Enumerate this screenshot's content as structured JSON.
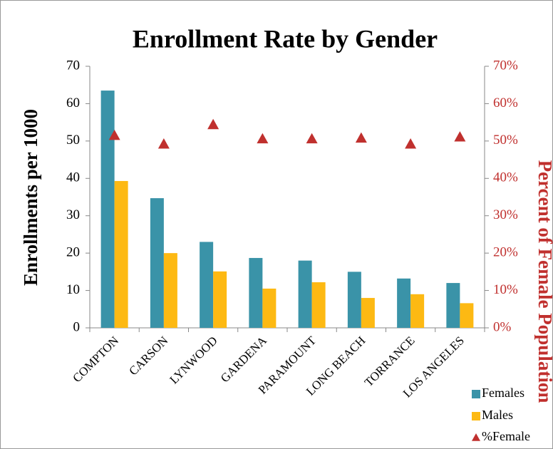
{
  "chart_data": {
    "type": "bar",
    "title": "Enrollment Rate by Gender",
    "ylabel": "Enrollments per 1000",
    "y2label": "Percent of Female Population",
    "categories": [
      "COMPTON",
      "CARSON",
      "LYNWOOD",
      "GARDENA",
      "PARAMOUNT",
      "LONG BEACH",
      "TORRANCE",
      "LOS ANGELES"
    ],
    "series": [
      {
        "name": "Females",
        "color": "#3a93a8",
        "type": "bar",
        "values": [
          63.5,
          34.7,
          23,
          18.7,
          18,
          15,
          13.2,
          12
        ]
      },
      {
        "name": "Males",
        "color": "#fdb913",
        "type": "bar",
        "values": [
          39.3,
          20,
          15.1,
          10.5,
          12.2,
          8,
          9,
          6.6
        ]
      },
      {
        "name": "%Female",
        "color": "#c0302e",
        "type": "scatter",
        "axis": "y2",
        "values": [
          51.5,
          49.2,
          54.4,
          50.6,
          50.6,
          50.8,
          49.2,
          51.1
        ]
      }
    ],
    "ylim": [
      0,
      70
    ],
    "yticks": [
      0,
      10,
      20,
      30,
      40,
      50,
      60,
      70
    ],
    "y2lim": [
      0,
      70
    ],
    "y2ticks": [
      {
        "value": 0,
        "label": "0%"
      },
      {
        "value": 10,
        "label": "10%"
      },
      {
        "value": 20,
        "label": "20%"
      },
      {
        "value": 30,
        "label": "30%"
      },
      {
        "value": 40,
        "label": "40%"
      },
      {
        "value": 50,
        "label": "50%"
      },
      {
        "value": 60,
        "label": "60%"
      },
      {
        "value": 70,
        "label": "70%"
      }
    ],
    "legend": "bottom-right",
    "grid": false
  }
}
